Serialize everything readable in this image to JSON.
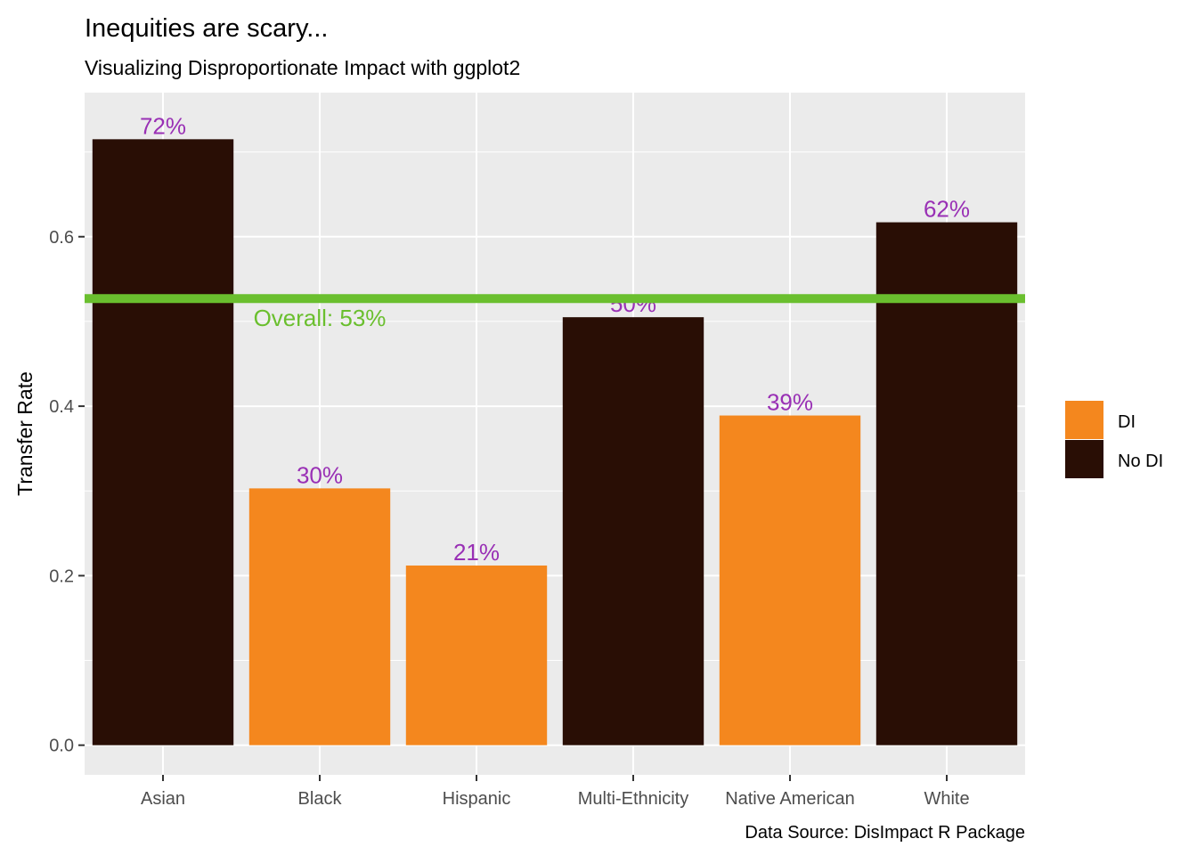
{
  "chart_data": {
    "type": "bar",
    "title": "Inequities are scary...",
    "subtitle": "Visualizing Disproportionate Impact with ggplot2",
    "caption": "Data Source: DisImpact R Package",
    "xlabel": "",
    "ylabel": "Transfer Rate",
    "categories": [
      "Asian",
      "Black",
      "Hispanic",
      "Multi-Ethnicity",
      "Native American",
      "White"
    ],
    "values": [
      0.715,
      0.303,
      0.212,
      0.505,
      0.389,
      0.617
    ],
    "labels": [
      "72%",
      "30%",
      "21%",
      "50%",
      "39%",
      "62%"
    ],
    "groups": [
      "No DI",
      "DI",
      "DI",
      "No DI",
      "DI",
      "No DI"
    ],
    "ylim": [
      -0.035,
      0.77
    ],
    "yticks": [
      0.0,
      0.2,
      0.4,
      0.6
    ],
    "ytick_labels": [
      "0.0",
      "0.2",
      "0.4",
      "0.6"
    ],
    "grid": true,
    "reference_line": {
      "value": 0.527,
      "label": "Overall: 53%",
      "color": "#6abf2e"
    },
    "legend": {
      "position": "right",
      "entries": [
        {
          "name": "DI",
          "color": "#f4871e"
        },
        {
          "name": "No DI",
          "color": "#290e05"
        }
      ]
    },
    "label_color": "#9930b5",
    "panel_color": "#ebebeb"
  }
}
